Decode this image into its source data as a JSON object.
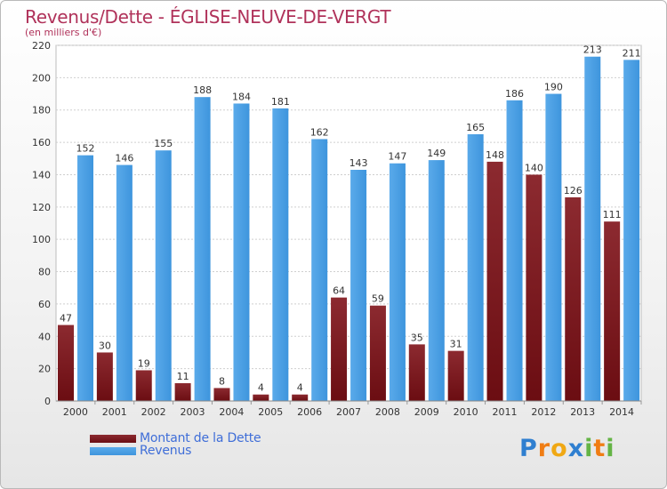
{
  "header": {
    "title": "Revenus/Dette - ÉGLISE-NEUVE-DE-VERGT",
    "subtitle": "(en milliers d'€)"
  },
  "logo": {
    "letters": [
      "P",
      "r",
      "o",
      "x",
      "i",
      "t",
      "i"
    ]
  },
  "colors": {
    "dette": "#6b0d12",
    "revenus": "#3e95dd",
    "grid": "#cfcfcf",
    "title": "#b0325a",
    "legend_text": "#3f6ed8",
    "logo": [
      "#2f7fd0",
      "#f07d14",
      "#f0a814",
      "#2f7fd0",
      "#64b445",
      "#f07d14",
      "#64b445"
    ]
  },
  "chart_data": {
    "type": "bar",
    "title": "Revenus/Dette - ÉGLISE-NEUVE-DE-VERGT",
    "ylabel": "(en milliers d'€)",
    "categories": [
      "2000",
      "2001",
      "2002",
      "2003",
      "2004",
      "2005",
      "2006",
      "2007",
      "2008",
      "2009",
      "2010",
      "2011",
      "2012",
      "2013",
      "2014"
    ],
    "series": [
      {
        "name": "Montant de la Dette",
        "values": [
          47,
          30,
          19,
          11,
          8,
          4,
          4,
          64,
          59,
          35,
          31,
          148,
          140,
          126,
          111
        ]
      },
      {
        "name": "Revenus",
        "values": [
          152,
          146,
          155,
          188,
          184,
          181,
          162,
          143,
          147,
          149,
          165,
          186,
          190,
          213,
          211
        ]
      }
    ],
    "ylim": [
      0,
      220
    ],
    "yticks": [
      0,
      20,
      40,
      60,
      80,
      100,
      120,
      140,
      160,
      180,
      200,
      220
    ],
    "grid": true,
    "legend": "bottom-left"
  }
}
